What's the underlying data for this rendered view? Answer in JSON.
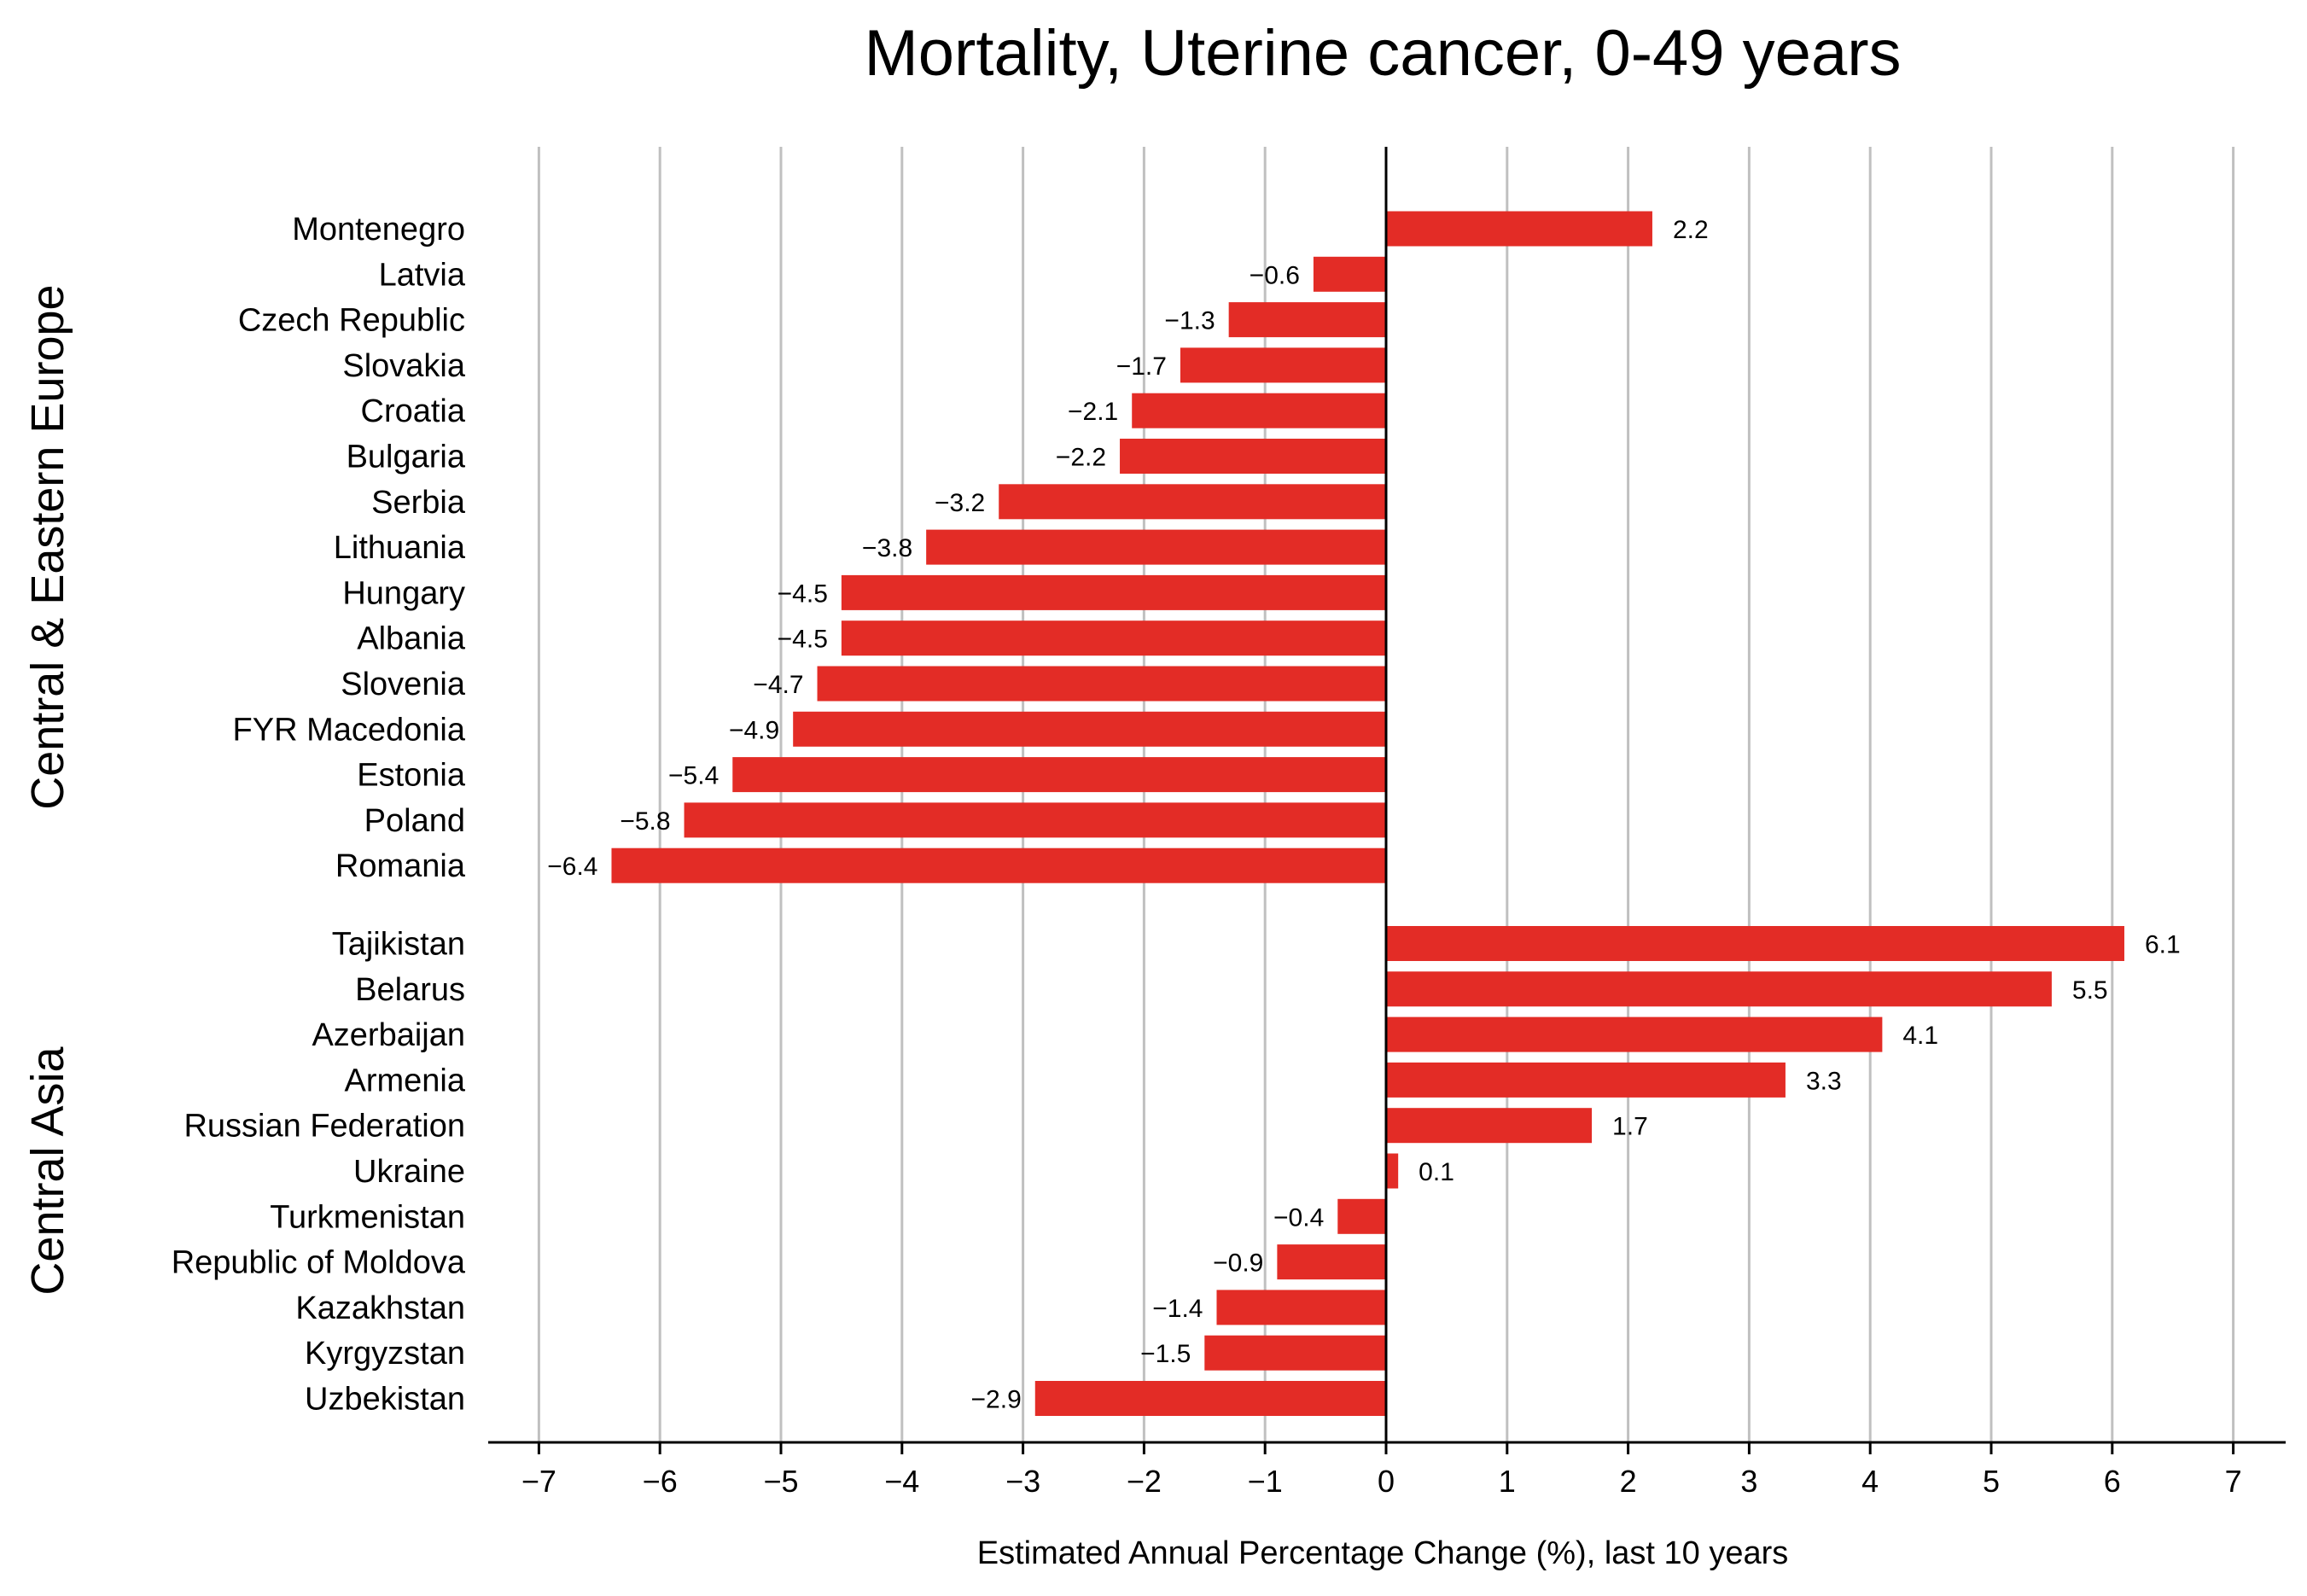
{
  "colors": {
    "bar": "#e32c26",
    "grid": "#c0c0c0",
    "axis": "#000000"
  },
  "chart_data": {
    "type": "bar",
    "orientation": "horizontal",
    "title": "Mortality, Uterine cancer, 0-49 years",
    "xlabel": "Estimated Annual Percentage Change (%), last 10 years",
    "ylabel": "",
    "xlim": [
      -7.45,
      7.45
    ],
    "xticks": [
      -7,
      -6,
      -5,
      -4,
      -3,
      -2,
      -1,
      0,
      1,
      2,
      3,
      4,
      5,
      6,
      7
    ],
    "xtick_labels": [
      "−7",
      "−6",
      "−5",
      "−4",
      "−3",
      "−2",
      "−1",
      "0",
      "1",
      "2",
      "3",
      "4",
      "5",
      "6",
      "7"
    ],
    "grid": "vertical",
    "groups": [
      {
        "name": "Central & Eastern Europe",
        "bars": [
          {
            "category": "Montenegro",
            "value": 2.2,
            "label": "2.2"
          },
          {
            "category": "Latvia",
            "value": -0.6,
            "label": "−0.6"
          },
          {
            "category": "Czech Republic",
            "value": -1.3,
            "label": "−1.3"
          },
          {
            "category": "Slovakia",
            "value": -1.7,
            "label": "−1.7"
          },
          {
            "category": "Croatia",
            "value": -2.1,
            "label": "−2.1"
          },
          {
            "category": "Bulgaria",
            "value": -2.2,
            "label": "−2.2"
          },
          {
            "category": "Serbia",
            "value": -3.2,
            "label": "−3.2"
          },
          {
            "category": "Lithuania",
            "value": -3.8,
            "label": "−3.8"
          },
          {
            "category": "Hungary",
            "value": -4.5,
            "label": "−4.5"
          },
          {
            "category": "Albania",
            "value": -4.5,
            "label": "−4.5"
          },
          {
            "category": "Slovenia",
            "value": -4.7,
            "label": "−4.7"
          },
          {
            "category": "FYR Macedonia",
            "value": -4.9,
            "label": "−4.9"
          },
          {
            "category": "Estonia",
            "value": -5.4,
            "label": "−5.4"
          },
          {
            "category": "Poland",
            "value": -5.8,
            "label": "−5.8"
          },
          {
            "category": "Romania",
            "value": -6.4,
            "label": "−6.4"
          }
        ]
      },
      {
        "name": "Central Asia",
        "bars": [
          {
            "category": "Tajikistan",
            "value": 6.1,
            "label": "6.1"
          },
          {
            "category": "Belarus",
            "value": 5.5,
            "label": "5.5"
          },
          {
            "category": "Azerbaijan",
            "value": 4.1,
            "label": "4.1"
          },
          {
            "category": "Armenia",
            "value": 3.3,
            "label": "3.3"
          },
          {
            "category": "Russian Federation",
            "value": 1.7,
            "label": "1.7"
          },
          {
            "category": "Ukraine",
            "value": 0.1,
            "label": "0.1"
          },
          {
            "category": "Turkmenistan",
            "value": -0.4,
            "label": "−0.4"
          },
          {
            "category": "Republic of Moldova",
            "value": -0.9,
            "label": "−0.9"
          },
          {
            "category": "Kazakhstan",
            "value": -1.4,
            "label": "−1.4"
          },
          {
            "category": "Kyrgyzstan",
            "value": -1.5,
            "label": "−1.5"
          },
          {
            "category": "Uzbekistan",
            "value": -2.9,
            "label": "−2.9"
          }
        ]
      }
    ]
  }
}
